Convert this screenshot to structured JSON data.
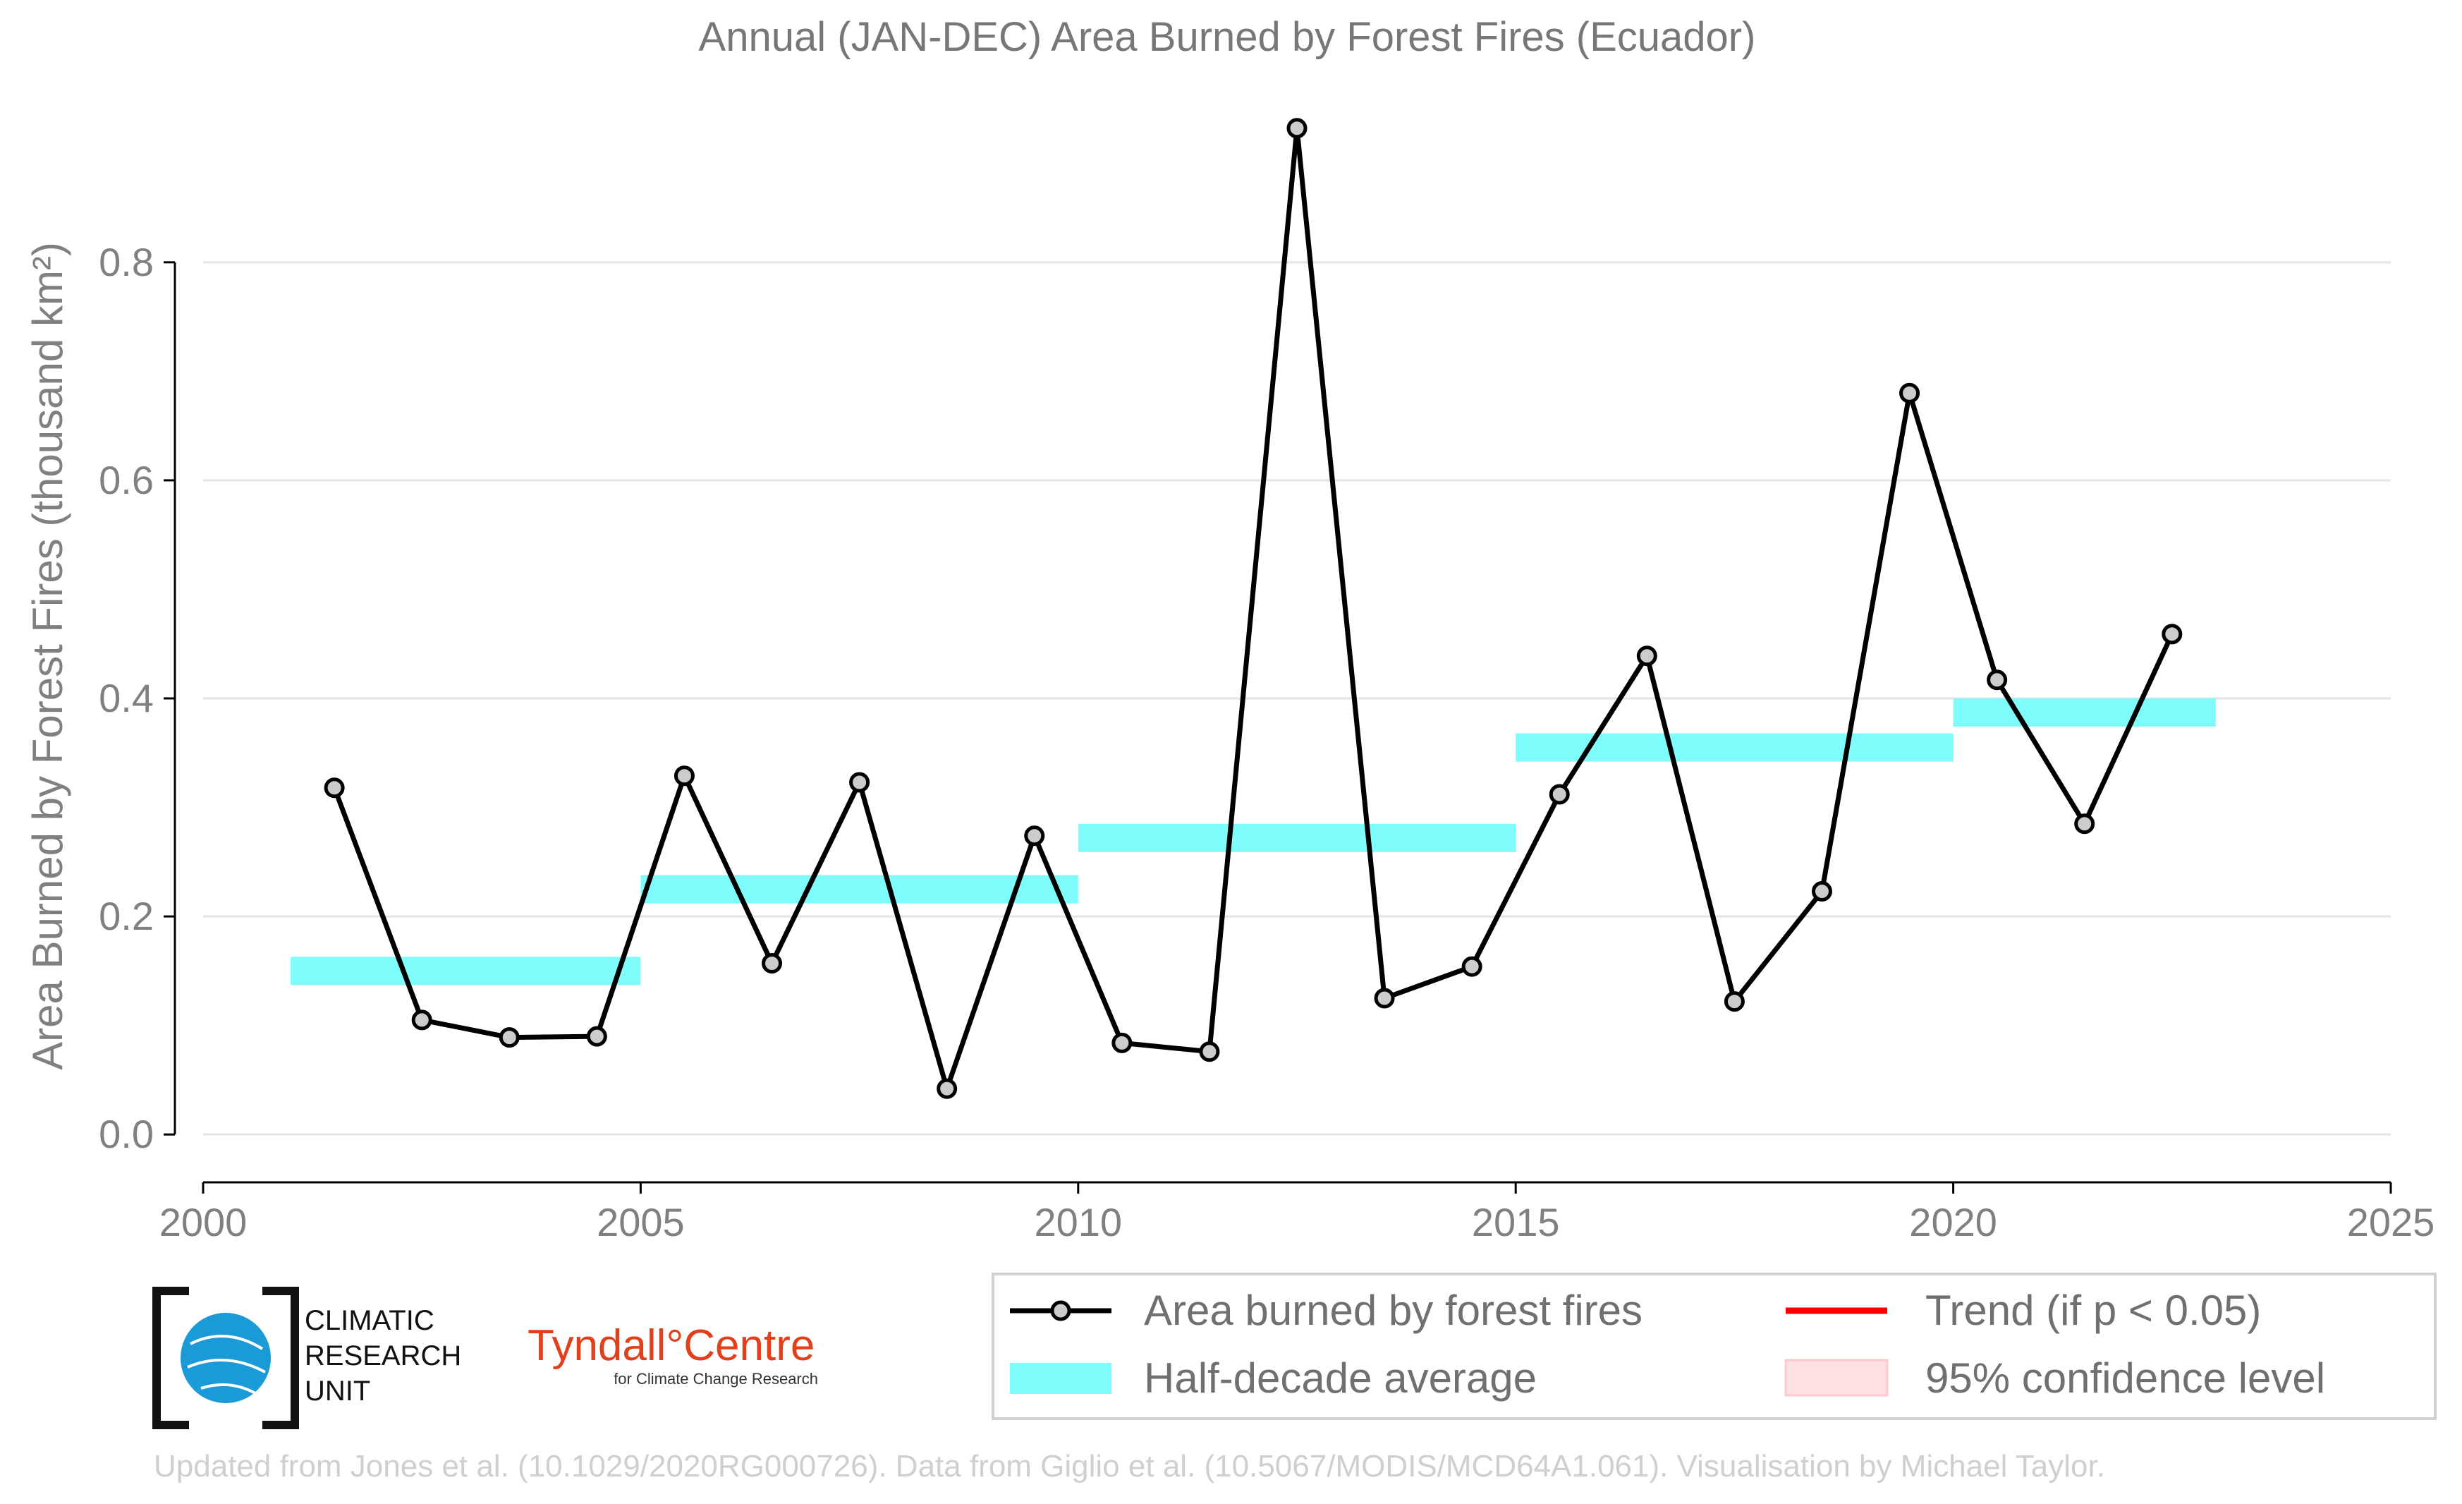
{
  "chart_data": {
    "type": "line",
    "title": "Annual (JAN-DEC) Area Burned by Forest Fires (Ecuador)",
    "ylabel": "Area Burned by Forest Fires (thousand km²)",
    "xlabel": "",
    "xlim": [
      2000,
      2025
    ],
    "ylim": [
      -0.04,
      0.95
    ],
    "x_ticks": [
      2000,
      2005,
      2010,
      2015,
      2020,
      2025
    ],
    "y_ticks": [
      "0.0",
      "0.2",
      "0.4",
      "0.6",
      "0.8"
    ],
    "grid": "horizontal",
    "legend_position": "bottom-right",
    "series": [
      {
        "name": "Area burned by forest fires",
        "color": "#000000",
        "marker_color": "#cccccc",
        "x": [
          2001.5,
          2002.5,
          2003.5,
          2004.5,
          2005.5,
          2006.5,
          2007.5,
          2008.5,
          2009.5,
          2010.5,
          2011.5,
          2012.5,
          2013.5,
          2014.5,
          2015.5,
          2016.5,
          2017.5,
          2018.5,
          2019.5,
          2020.5,
          2021.5,
          2022.5
        ],
        "values": [
          0.318,
          0.105,
          0.089,
          0.09,
          0.329,
          0.157,
          0.323,
          0.042,
          0.274,
          0.084,
          0.076,
          0.923,
          0.125,
          0.154,
          0.312,
          0.439,
          0.122,
          0.223,
          0.68,
          0.417,
          0.285,
          0.459
        ]
      },
      {
        "name": "Half-decade average",
        "color": "#7ffcfc",
        "segments": [
          {
            "x0": 2001,
            "x1": 2005,
            "value": 0.15
          },
          {
            "x0": 2005,
            "x1": 2010,
            "value": 0.225
          },
          {
            "x0": 2010,
            "x1": 2015,
            "value": 0.272
          },
          {
            "x0": 2015,
            "x1": 2020,
            "value": 0.355
          },
          {
            "x0": 2020,
            "x1": 2023,
            "value": 0.387
          }
        ]
      }
    ],
    "legend": [
      {
        "label": "Area burned by forest fires",
        "kind": "line-marker",
        "color": "#000000"
      },
      {
        "label": "Trend (if p < 0.05)",
        "kind": "line",
        "color": "#ff0000"
      },
      {
        "label": "Half-decade average",
        "kind": "band",
        "color": "#7ffcfc"
      },
      {
        "label": "95% confidence level",
        "kind": "patch",
        "color": "#ffe0e3"
      }
    ]
  },
  "logos": {
    "cru": [
      "CLIMATIC",
      "RESEARCH",
      "UNIT"
    ],
    "tyndall": "Tyndall°Centre",
    "tyndall_sub": "for Climate Change Research"
  },
  "footer": "Updated from Jones et al. (10.1029/2020RG000726). Data from Giglio et al. (10.5067/MODIS/MCD64A1.061). Visualisation by Michael Taylor."
}
